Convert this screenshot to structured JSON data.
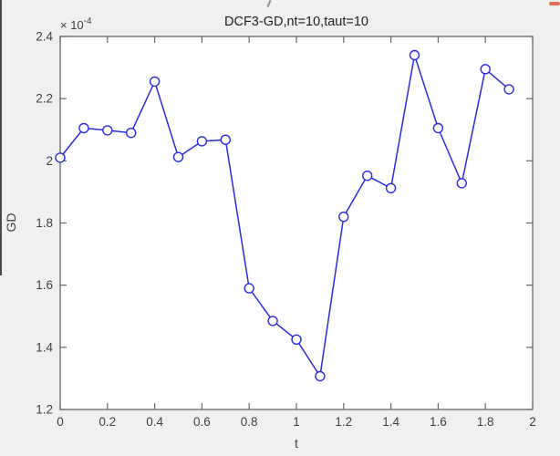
{
  "figure": {
    "background": "#f0f0f0",
    "plot_background": "#ffffff",
    "axis_color": "#666666",
    "tick_label_color": "#3f3f3f",
    "title_color": "#1f1f1f"
  },
  "artifacts": {
    "left_edge_strip_color": "#4a4a4a",
    "stray_slash_color": "#8f8f8f",
    "corner_mark_color": "#dd7356"
  },
  "chart_data": {
    "type": "line",
    "title": "DCF3-GD,nt=10,taut=10",
    "xlabel": "t",
    "ylabel": "GD",
    "y_axis_multiplier": {
      "base": "× 10",
      "exponent": "-4"
    },
    "xlim": [
      0,
      2
    ],
    "ylim": [
      1.2,
      2.4
    ],
    "x_ticks": [
      "0",
      "0.2",
      "0.4",
      "0.6",
      "0.8",
      "1",
      "1.2",
      "1.4",
      "1.6",
      "1.8",
      "2"
    ],
    "y_ticks": [
      "1.2",
      "1.4",
      "1.6",
      "1.8",
      "2",
      "2.2",
      "2.4"
    ],
    "x": [
      0,
      0.1,
      0.2,
      0.3,
      0.4,
      0.5,
      0.6,
      0.7,
      0.8,
      0.9,
      1.0,
      1.1,
      1.2,
      1.3,
      1.4,
      1.5,
      1.6,
      1.7,
      1.8,
      1.9
    ],
    "values": [
      2.01,
      2.105,
      2.098,
      2.09,
      2.255,
      2.012,
      2.063,
      2.068,
      1.59,
      1.485,
      1.425,
      1.307,
      1.82,
      1.952,
      1.912,
      2.34,
      2.105,
      1.928,
      2.295,
      2.23
    ],
    "values_unit": "1e-4",
    "line_color": "#2b2be0",
    "marker": "circle-open",
    "grid": false,
    "legend": null
  }
}
